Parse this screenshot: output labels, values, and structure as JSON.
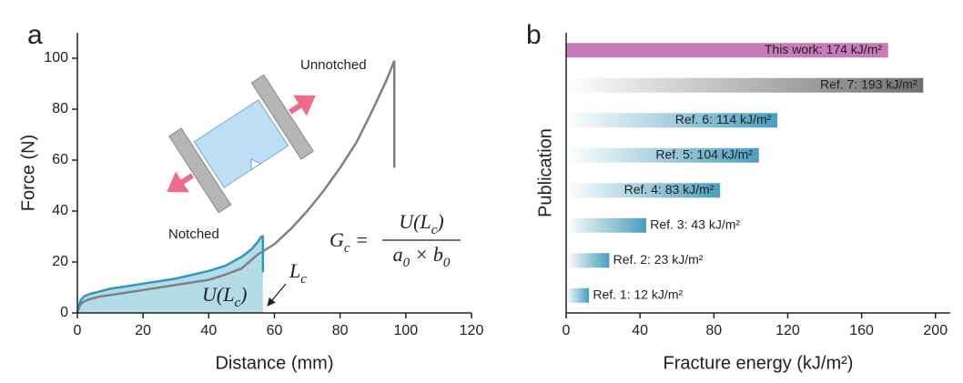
{
  "chart_data": [
    {
      "type": "line",
      "panel_label": "a",
      "xlabel": "Distance (mm)",
      "ylabel": "Force (N)",
      "xlim": [
        0,
        120
      ],
      "xticks": [
        0,
        20,
        40,
        60,
        80,
        100,
        120
      ],
      "ylim": [
        0,
        110
      ],
      "yticks": [
        0,
        20,
        40,
        60,
        80,
        100
      ],
      "series": [
        {
          "name": "Unnotched",
          "color": "#808080",
          "x": [
            0,
            0.5,
            1,
            2,
            4,
            7,
            10,
            15,
            20,
            25,
            30,
            35,
            40,
            45,
            50,
            55,
            60,
            65,
            70,
            75,
            80,
            85,
            90,
            94,
            96.5,
            96.5
          ],
          "values": [
            0,
            2,
            3.5,
            4.5,
            5.5,
            6.5,
            7,
            8,
            9,
            10,
            11,
            12,
            13,
            15,
            17.5,
            23,
            27,
            33,
            40,
            48,
            57,
            67,
            80,
            91,
            99,
            57
          ]
        },
        {
          "name": "Notched",
          "color": "#2e9ab8",
          "fill": "#b3dbea",
          "x": [
            0,
            0.5,
            1,
            2,
            4,
            7,
            10,
            15,
            20,
            25,
            30,
            35,
            40,
            45,
            50,
            53,
            55,
            56,
            56.5,
            56.5
          ],
          "values": [
            0,
            3,
            5,
            6.5,
            7.5,
            8.5,
            9.5,
            10.5,
            11.5,
            12.5,
            13.5,
            15,
            16.5,
            18.5,
            22,
            25,
            28,
            30,
            30,
            16
          ]
        }
      ],
      "area_label": [
        "U(L",
        "c",
        ")"
      ],
      "point_label": [
        "L",
        "c"
      ],
      "formula": {
        "lhs": [
          "G",
          "c",
          " = "
        ],
        "numerator": [
          "U(L",
          "c",
          ")"
        ],
        "denominator": [
          "a",
          "0",
          " × b",
          "0"
        ]
      }
    },
    {
      "type": "hbar",
      "panel_label": "b",
      "xlabel": "Fracture energy (kJ/m²)",
      "ylabel": "Publication",
      "xlim": [
        0,
        208
      ],
      "xticks": [
        0,
        40,
        80,
        120,
        160,
        200
      ],
      "values": [
        12,
        23,
        43,
        83,
        104,
        114,
        193,
        174
      ],
      "value_labels": [
        "Ref. 1: 12 kJ/m²",
        "Ref. 2: 23 kJ/m²",
        "Ref. 3: 43 kJ/m²",
        "Ref. 4: 83 kJ/m²",
        "Ref. 5: 104 kJ/m²",
        "Ref. 6: 114 kJ/m²",
        "Ref. 7: 193 kJ/m²",
        "This work: 174 kJ/m²"
      ],
      "colors": [
        "#4a9fbe",
        "#4a9fbe",
        "#4a9fbe",
        "#4a9fbe",
        "#4a9fbe",
        "#4a9fbe",
        "#707070",
        "#c97ab9"
      ]
    }
  ]
}
